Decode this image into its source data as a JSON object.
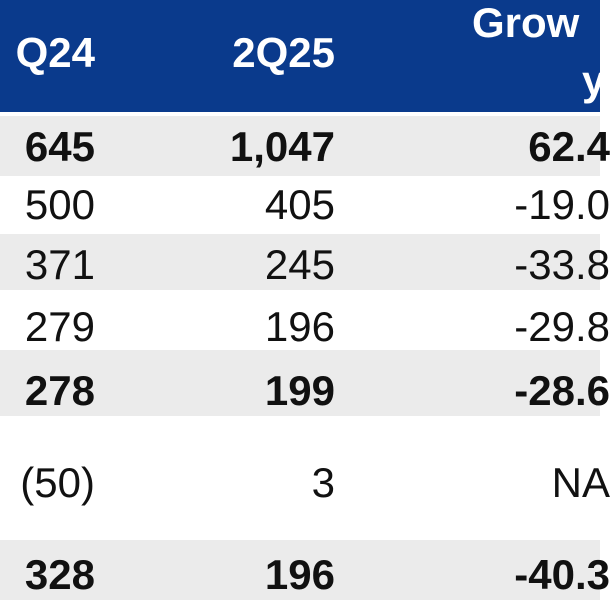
{
  "table": {
    "headers": [
      "Q24",
      "2Q25",
      "Grow",
      "y"
    ],
    "rows": [
      {
        "c1": "645",
        "c2": "1,047",
        "c3": "62.4",
        "bold": true
      },
      {
        "c1": "500",
        "c2": "405",
        "c3": "-19.0",
        "bold": false
      },
      {
        "c1": "371",
        "c2": "245",
        "c3": "-33.8",
        "bold": false
      },
      {
        "c1": "279",
        "c2": "196",
        "c3": "-29.8",
        "bold": false
      },
      {
        "c1": "278",
        "c2": "199",
        "c3": "-28.6",
        "bold": true
      },
      {
        "c1": "(50)",
        "c2": "3",
        "c3": "NA",
        "bold": false
      },
      {
        "c1": "328",
        "c2": "196",
        "c3": "-40.3",
        "bold": true
      }
    ]
  },
  "colors": {
    "header_bg": "#0a3a8c",
    "header_text": "#ffffff",
    "shaded_row": "#ebebeb",
    "text": "#111111"
  }
}
